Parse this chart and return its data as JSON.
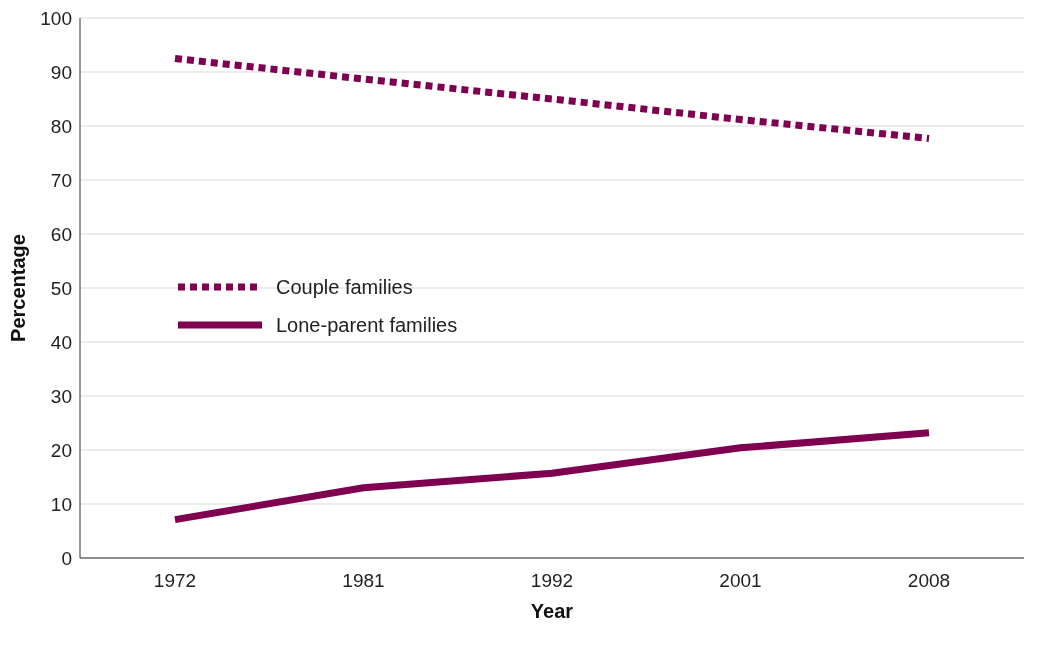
{
  "chart_data": {
    "type": "line",
    "xlabel": "Year",
    "ylabel": "Percentage",
    "categories": [
      "1972",
      "1981",
      "1992",
      "2001",
      "2008"
    ],
    "series": [
      {
        "name": "Couple families",
        "color": "#7f0050",
        "line_style": "dotted",
        "values": [
          92.5,
          88.7,
          85,
          81.2,
          77.7
        ]
      },
      {
        "name": "Lone-parent families",
        "color": "#7f0050",
        "line_style": "solid",
        "values": [
          7.1,
          13,
          15.7,
          20.4,
          23.2
        ]
      }
    ],
    "ylim": [
      0,
      100
    ],
    "yticks": [
      0,
      10,
      20,
      30,
      40,
      50,
      60,
      70,
      80,
      90,
      100
    ],
    "grid": "y",
    "legend": "left",
    "marker": "none"
  }
}
